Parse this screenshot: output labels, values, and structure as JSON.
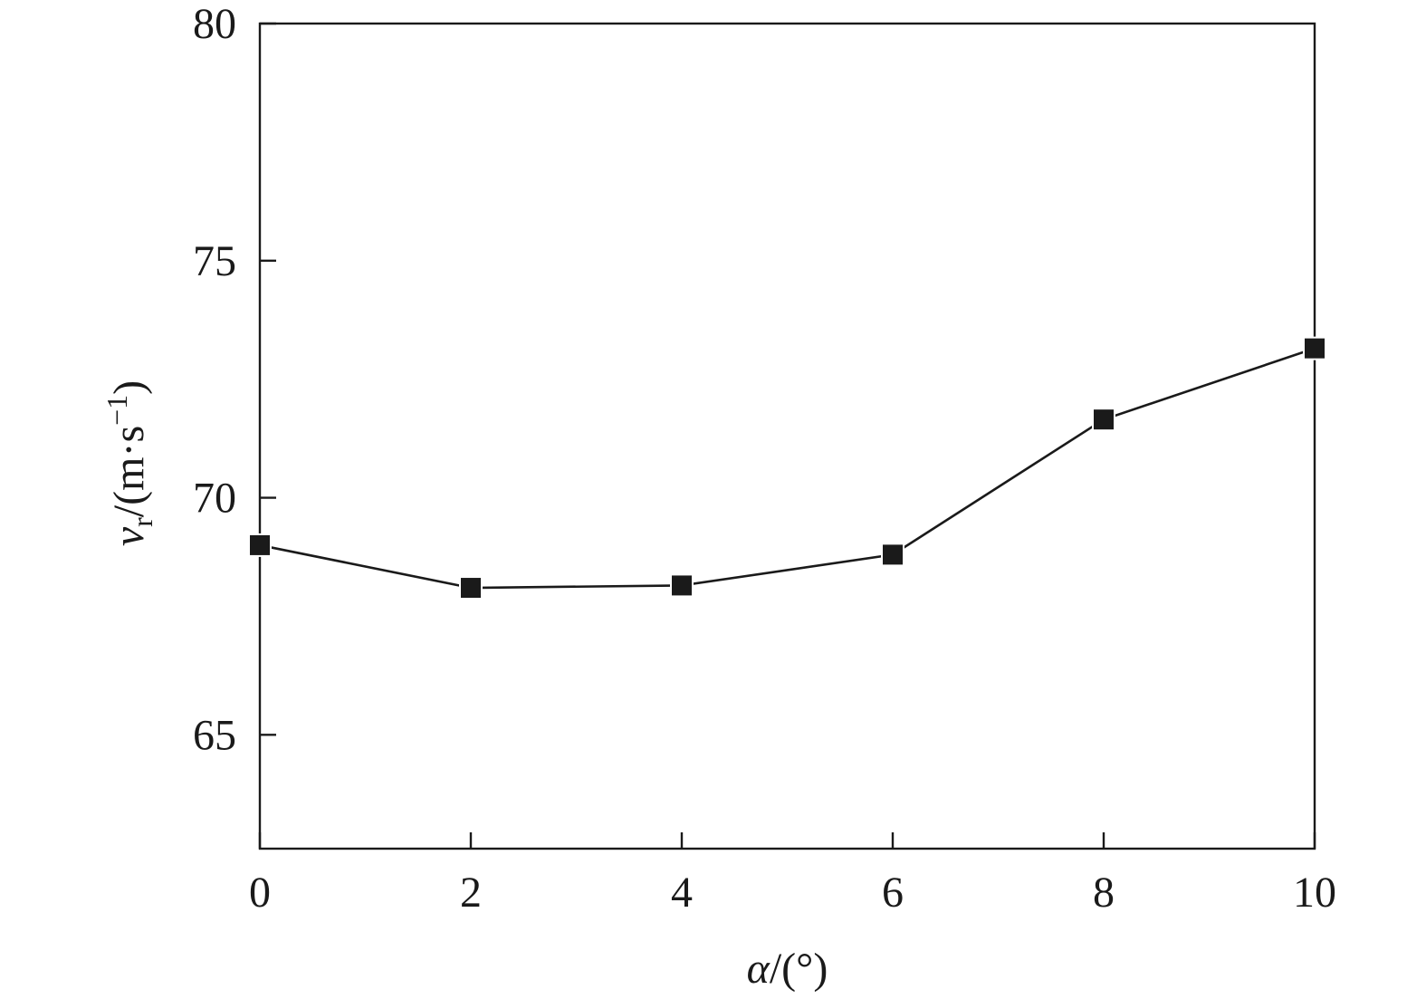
{
  "chart_data": {
    "type": "line",
    "x": [
      0,
      2,
      4,
      6,
      8,
      10
    ],
    "series": [
      {
        "values": [
          69.0,
          68.1,
          68.15,
          68.8,
          71.65,
          73.15
        ],
        "marker": "square",
        "color": "#1a1a1a"
      }
    ],
    "xlabel": {
      "symbol": "α",
      "unit": "/(°)"
    },
    "ylabel": {
      "symbol": "v",
      "subscript": "r",
      "unit_pre": "/(m·s",
      "superscript": "−1",
      "unit_post": ")"
    },
    "xlim": [
      0,
      10
    ],
    "ylim": [
      62.6,
      80
    ],
    "xticks": [
      0,
      2,
      4,
      6,
      8,
      10
    ],
    "yticks": [
      65,
      70,
      75,
      80
    ],
    "grid": false,
    "legend": "none"
  }
}
